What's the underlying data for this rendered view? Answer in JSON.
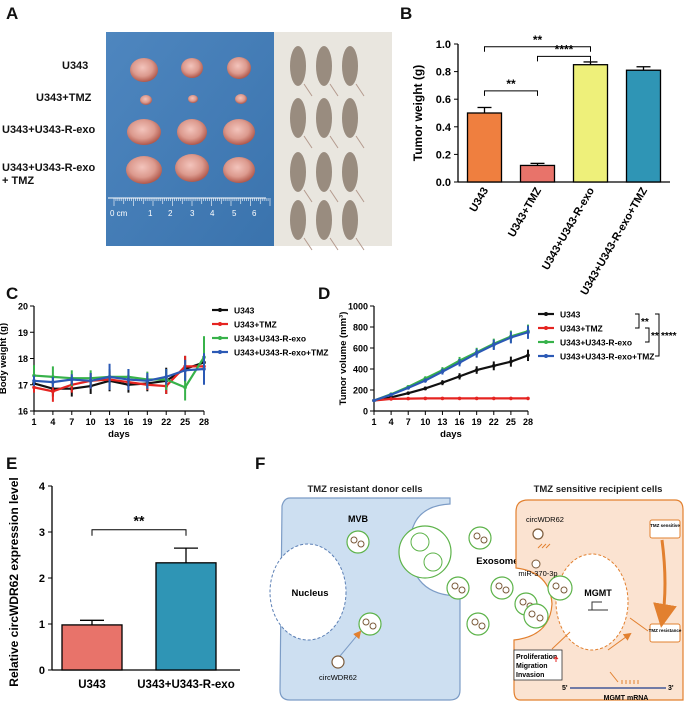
{
  "panels": {
    "A": "A",
    "B": "B",
    "C": "C",
    "D": "D",
    "E": "E",
    "F": "F"
  },
  "panel_a": {
    "rows": [
      "U343",
      "U343+TMZ",
      "U343+U343-R-exo",
      "U343+U343-R-exo\n+ TMZ"
    ],
    "ruler_labels": [
      "0 cm",
      "1",
      "2",
      "3",
      "4",
      "5",
      "6"
    ]
  },
  "colors": {
    "orange": "#ef7f3f",
    "salmon": "#e8736a",
    "yellow": "#eef07a",
    "teal": "#2f95b5",
    "black": "#111111",
    "red": "#e52421",
    "green": "#37b24a",
    "blue": "#2b59b5"
  },
  "chart_data": [
    {
      "id": "B",
      "type": "bar",
      "title": "",
      "ylabel": "Tumor weight (g)",
      "categories": [
        "U343",
        "U343+TMZ",
        "U343+U343-R-exo",
        "U343+U343-R-exo+TMZ"
      ],
      "values": [
        0.5,
        0.12,
        0.85,
        0.81
      ],
      "errors": [
        0.04,
        0.015,
        0.02,
        0.025
      ],
      "ylim": [
        0,
        1.0
      ],
      "yticks": [
        "0.0",
        "0.2",
        "0.4",
        "0.6",
        "0.8",
        "1.0"
      ],
      "significance": [
        {
          "from": 0,
          "to": 1,
          "label": "**"
        },
        {
          "from": 0,
          "to": 2,
          "label": "**"
        },
        {
          "from": 1,
          "to": 2,
          "label": "****"
        }
      ]
    },
    {
      "id": "C",
      "type": "line",
      "ylabel": "Body weight (g)",
      "xlabel": "days",
      "x": [
        1,
        4,
        7,
        10,
        13,
        16,
        19,
        22,
        25,
        28
      ],
      "xticks": [
        "1",
        "4",
        "7",
        "10",
        "13",
        "16",
        "19",
        "22",
        "25",
        "28"
      ],
      "yticks": [
        "16",
        "17",
        "18",
        "19",
        "20"
      ],
      "ylim": [
        16,
        20
      ],
      "series": [
        {
          "name": "U343",
          "values": [
            17.05,
            16.85,
            16.85,
            16.95,
            17.15,
            17.0,
            17.05,
            17.15,
            17.6,
            17.85
          ]
        },
        {
          "name": "U343+TMZ",
          "values": [
            16.9,
            16.75,
            17.0,
            17.15,
            17.2,
            17.1,
            17.0,
            16.95,
            17.7,
            17.7
          ]
        },
        {
          "name": "U343+U343-R-exo",
          "values": [
            17.35,
            17.3,
            17.25,
            17.25,
            17.3,
            17.3,
            17.2,
            17.2,
            16.9,
            18.05
          ]
        },
        {
          "name": "U343+U343-R-exo+TMZ",
          "values": [
            17.15,
            17.1,
            17.2,
            17.15,
            17.3,
            17.2,
            17.15,
            17.3,
            17.55,
            17.6
          ]
        }
      ]
    },
    {
      "id": "D",
      "type": "line",
      "ylabel": "Tumor volume (mm³)",
      "xlabel": "days",
      "x": [
        1,
        4,
        7,
        10,
        13,
        16,
        19,
        22,
        25,
        28
      ],
      "xticks": [
        "1",
        "4",
        "7",
        "10",
        "13",
        "16",
        "19",
        "22",
        "25",
        "28"
      ],
      "yticks": [
        "0",
        "200",
        "400",
        "600",
        "800",
        "1000"
      ],
      "ylim": [
        0,
        1000
      ],
      "series": [
        {
          "name": "U343",
          "values": [
            100,
            130,
            170,
            215,
            270,
            330,
            390,
            430,
            470,
            530
          ]
        },
        {
          "name": "U343+TMZ",
          "values": [
            100,
            115,
            118,
            120,
            120,
            120,
            120,
            120,
            120,
            120
          ]
        },
        {
          "name": "U343+U343-R-exo",
          "values": [
            100,
            160,
            230,
            310,
            390,
            480,
            560,
            640,
            710,
            760
          ]
        },
        {
          "name": "U343+U343-R-exo+TMZ",
          "values": [
            100,
            155,
            220,
            290,
            375,
            460,
            550,
            630,
            700,
            750
          ]
        }
      ],
      "significance": [
        "**",
        "**",
        "****"
      ]
    },
    {
      "id": "E",
      "type": "bar",
      "ylabel": "Relative circWDR62 expression level",
      "categories": [
        "U343",
        "U343+U343-R-exo"
      ],
      "values": [
        0.98,
        2.33
      ],
      "errors": [
        0.1,
        0.32
      ],
      "ylim": [
        0,
        4
      ],
      "yticks": [
        "0",
        "1",
        "2",
        "3",
        "4"
      ],
      "significance": [
        {
          "from": 0,
          "to": 1,
          "label": "**"
        }
      ]
    }
  ],
  "panel_f": {
    "donor_title": "TMZ resistant donor cells",
    "recipient_title": "TMZ sensitive recipient cells",
    "mvb": "MVB",
    "nucleus": "Nucleus",
    "circ_bottom": "circWDR62",
    "exosomes": "Exosomes",
    "circ_top": "circWDR62",
    "mir": "miR-370-3p",
    "mgmt": "MGMT",
    "tmz_sensitive": "TMZ sensitive",
    "tmz_resistance": "TMZ resistance",
    "prolif1": "Proliferation",
    "prolif2": "Migration",
    "prolif3": "Invasion",
    "five": "5'",
    "three": "3'",
    "mrna": "MGMT mRNA"
  }
}
